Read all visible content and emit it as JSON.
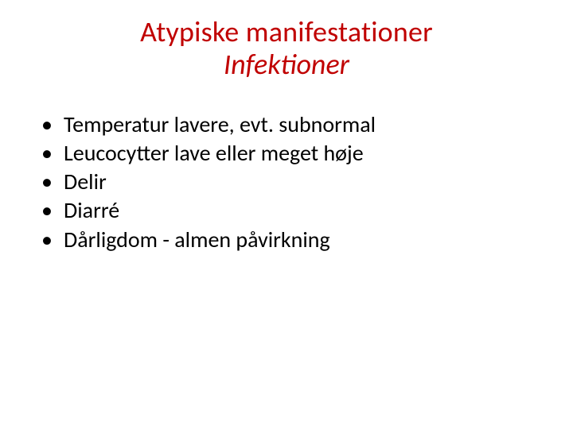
{
  "colors": {
    "title": "#c00000",
    "body": "#000000",
    "background": "#ffffff"
  },
  "typography": {
    "title_fontsize_pt": 36,
    "body_fontsize_pt": 28,
    "font_family": "Calibri"
  },
  "title": {
    "line1": "Atypiske manifestationer",
    "line2": "Infektioner",
    "line2_italic": true
  },
  "bullets": [
    {
      "marker": "•",
      "text": "Temperatur lavere, evt. subnormal"
    },
    {
      "marker": "•",
      "text": "Leucocytter lave eller meget høje"
    },
    {
      "marker": "•",
      "text": "Delir"
    },
    {
      "marker": "•",
      "text": "Diarré"
    },
    {
      "marker": "•",
      "text": "Dårligdom - almen påvirkning"
    }
  ]
}
